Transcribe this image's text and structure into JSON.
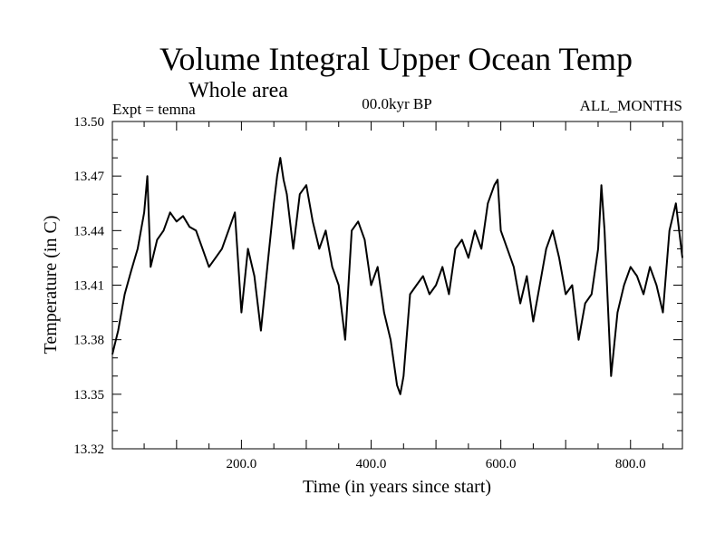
{
  "chart_data": {
    "type": "line",
    "title": "Volume Integral Upper Ocean Temp",
    "subtitle": "Whole area",
    "left_label": "Expt = temna",
    "center_label": "00.0kyr BP",
    "right_label": "ALL_MONTHS",
    "xlabel": "Time (in years since start)",
    "ylabel": "Temperature (in C)",
    "xlim": [
      1,
      880
    ],
    "ylim": [
      13.32,
      13.5
    ],
    "xticks": [
      200,
      400,
      600,
      800
    ],
    "xtick_labels": [
      "200.0",
      "400.0",
      "600.0",
      "800.0"
    ],
    "yticks": [
      13.32,
      13.35,
      13.38,
      13.41,
      13.44,
      13.47,
      13.5
    ],
    "ytick_labels": [
      "13.32",
      "13.35",
      "13.38",
      "13.41",
      "13.44",
      "13.47",
      "13.50"
    ],
    "grid": false,
    "line_color": "#000000",
    "series": [
      {
        "name": "temna",
        "x": [
          1,
          10,
          20,
          30,
          40,
          50,
          55,
          60,
          70,
          80,
          90,
          100,
          110,
          120,
          130,
          140,
          150,
          160,
          170,
          180,
          190,
          200,
          210,
          220,
          230,
          240,
          250,
          255,
          260,
          265,
          270,
          280,
          290,
          300,
          310,
          320,
          330,
          340,
          350,
          360,
          370,
          380,
          390,
          400,
          410,
          420,
          430,
          440,
          445,
          450,
          460,
          470,
          480,
          490,
          500,
          510,
          520,
          530,
          540,
          550,
          560,
          570,
          580,
          590,
          595,
          600,
          610,
          620,
          630,
          640,
          650,
          660,
          670,
          680,
          690,
          700,
          710,
          720,
          730,
          740,
          750,
          755,
          760,
          765,
          770,
          780,
          790,
          800,
          810,
          820,
          830,
          840,
          850,
          860,
          870,
          880
        ],
        "values": [
          13.372,
          13.385,
          13.405,
          13.418,
          13.43,
          13.45,
          13.47,
          13.42,
          13.435,
          13.44,
          13.45,
          13.445,
          13.448,
          13.442,
          13.44,
          13.43,
          13.42,
          13.425,
          13.43,
          13.44,
          13.45,
          13.395,
          13.43,
          13.415,
          13.385,
          13.42,
          13.455,
          13.47,
          13.48,
          13.468,
          13.46,
          13.43,
          13.46,
          13.465,
          13.445,
          13.43,
          13.44,
          13.42,
          13.41,
          13.38,
          13.44,
          13.445,
          13.435,
          13.41,
          13.42,
          13.395,
          13.38,
          13.355,
          13.35,
          13.36,
          13.405,
          13.41,
          13.415,
          13.405,
          13.41,
          13.42,
          13.405,
          13.43,
          13.435,
          13.425,
          13.44,
          13.43,
          13.455,
          13.465,
          13.468,
          13.44,
          13.43,
          13.42,
          13.4,
          13.415,
          13.39,
          13.41,
          13.43,
          13.44,
          13.425,
          13.405,
          13.41,
          13.38,
          13.4,
          13.405,
          13.43,
          13.465,
          13.44,
          13.4,
          13.36,
          13.395,
          13.41,
          13.42,
          13.415,
          13.405,
          13.42,
          13.41,
          13.395,
          13.44,
          13.455,
          13.425
        ]
      }
    ]
  }
}
